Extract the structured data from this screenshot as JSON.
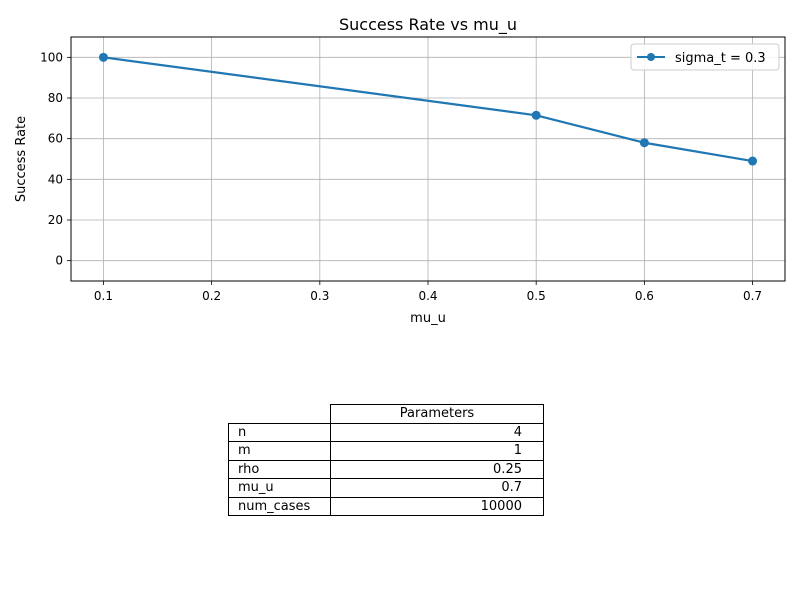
{
  "chart_data": {
    "type": "line",
    "title": "Success Rate vs mu_u",
    "xlabel": "mu_u",
    "ylabel": "Success Rate",
    "xlim": [
      0.07,
      0.73
    ],
    "ylim": [
      -10,
      110
    ],
    "x_ticks": [
      "0.1",
      "0.2",
      "0.3",
      "0.4",
      "0.5",
      "0.6",
      "0.7"
    ],
    "y_ticks": [
      "0",
      "20",
      "40",
      "60",
      "80",
      "100"
    ],
    "grid": true,
    "legend_position": "top-right",
    "series": [
      {
        "name": "sigma_t = 0.3",
        "color": "#1f77b4",
        "marker": "circle",
        "x": [
          0.1,
          0.5,
          0.6,
          0.7
        ],
        "y": [
          100,
          71.5,
          58,
          49
        ]
      }
    ]
  },
  "table": {
    "header": "Parameters",
    "rows": [
      {
        "key": "n",
        "value": "4"
      },
      {
        "key": "m",
        "value": "1"
      },
      {
        "key": "rho",
        "value": "0.25"
      },
      {
        "key": "mu_u",
        "value": "0.7"
      },
      {
        "key": "num_cases",
        "value": "10000"
      }
    ]
  }
}
